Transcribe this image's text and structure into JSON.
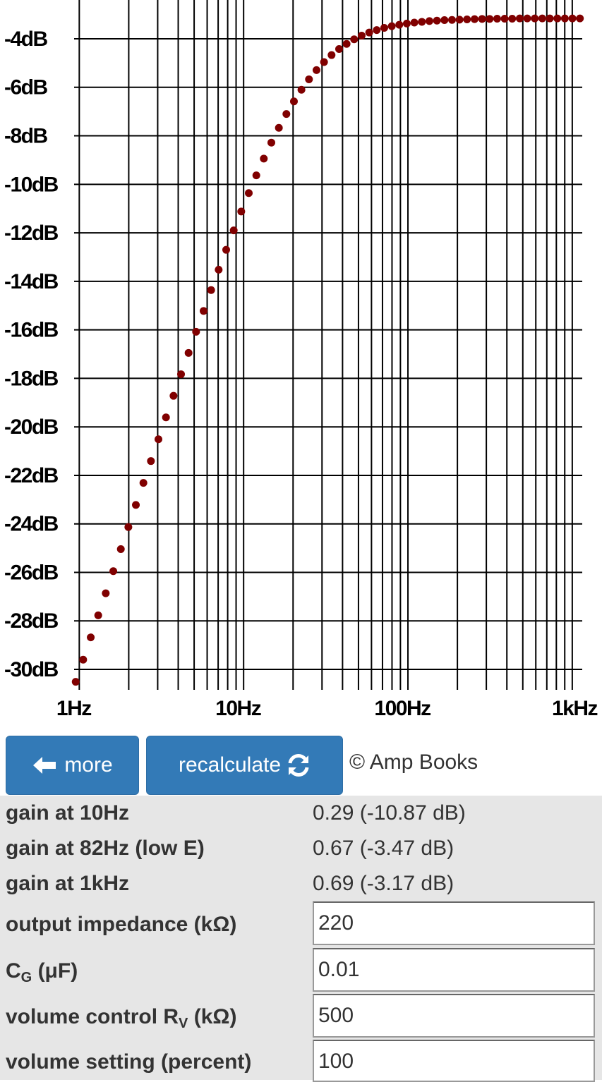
{
  "chart_data": {
    "type": "scatter",
    "log_x": true,
    "grid": true,
    "color": "#800000",
    "x": [
      0.951,
      1.056,
      1.174,
      1.304,
      1.449,
      1.611,
      1.79,
      1.989,
      2.21,
      2.456,
      2.729,
      3.032,
      3.37,
      3.745,
      4.161,
      4.624,
      5.138,
      5.709,
      6.344,
      7.05,
      7.834,
      8.705,
      9.674,
      10.75,
      11.95,
      13.27,
      14.75,
      16.39,
      18.21,
      20.24,
      22.49,
      24.99,
      27.77,
      30.86,
      34.29,
      38.11,
      42.35,
      47.06,
      52.29,
      58.1,
      64.57,
      71.75,
      79.73,
      88.6,
      98.45,
      109.4,
      121.6,
      135.1,
      150.1,
      166.8,
      185.4,
      206,
      228.9,
      254.4,
      282.7,
      314.1,
      349,
      387.8,
      431,
      478.9,
      532.1,
      591.3,
      657,
      730.1,
      811.2,
      901.5,
      1002,
      1113
    ],
    "values": [
      -30.51,
      -29.6,
      -28.68,
      -27.77,
      -26.86,
      -25.95,
      -25.04,
      -24.13,
      -23.22,
      -22.31,
      -21.41,
      -20.51,
      -19.61,
      -18.72,
      -17.83,
      -16.95,
      -16.08,
      -15.22,
      -14.36,
      -13.52,
      -12.7,
      -11.9,
      -11.12,
      -10.36,
      -9.63,
      -8.94,
      -8.28,
      -7.67,
      -7.1,
      -6.58,
      -6.1,
      -5.67,
      -5.29,
      -4.96,
      -4.67,
      -4.42,
      -4.21,
      -4.02,
      -3.87,
      -3.74,
      -3.64,
      -3.55,
      -3.48,
      -3.42,
      -3.37,
      -3.33,
      -3.3,
      -3.27,
      -3.25,
      -3.23,
      -3.22,
      -3.21,
      -3.2,
      -3.19,
      -3.18,
      -3.18,
      -3.17,
      -3.17,
      -3.17,
      -3.16,
      -3.16,
      -3.16,
      -3.16,
      -3.16,
      -3.16,
      -3.16,
      -3.16,
      -3.16
    ],
    "xlim": [
      0.93,
      1150
    ],
    "ylim": [
      -30.9,
      -2.4
    ],
    "xticks": [
      {
        "value": 1,
        "label": "1Hz"
      },
      {
        "value": 10,
        "label": "10Hz"
      },
      {
        "value": 100,
        "label": "100Hz"
      },
      {
        "value": 1000,
        "label": "1kHz"
      }
    ],
    "x_minor_ticks": [
      2,
      3,
      4,
      5,
      6,
      7,
      8,
      9,
      20,
      30,
      40,
      50,
      60,
      70,
      80,
      90,
      200,
      300,
      400,
      500,
      600,
      700,
      800,
      900
    ],
    "yticks": [
      {
        "value": -4,
        "label": "-4dB"
      },
      {
        "value": -6,
        "label": "-6dB"
      },
      {
        "value": -8,
        "label": "-8dB"
      },
      {
        "value": -10,
        "label": "-10dB"
      },
      {
        "value": -12,
        "label": "-12dB"
      },
      {
        "value": -14,
        "label": "-14dB"
      },
      {
        "value": -16,
        "label": "-16dB"
      },
      {
        "value": -18,
        "label": "-18dB"
      },
      {
        "value": -20,
        "label": "-20dB"
      },
      {
        "value": -22,
        "label": "-22dB"
      },
      {
        "value": -24,
        "label": "-24dB"
      },
      {
        "value": -26,
        "label": "-26dB"
      },
      {
        "value": -28,
        "label": "-28dB"
      },
      {
        "value": -30,
        "label": "-30dB"
      }
    ]
  },
  "buttons": [
    "more",
    "recalculate"
  ],
  "credit": "© Amp Books",
  "results": [
    {
      "label": "gain at 10Hz",
      "value": "0.29 (-10.87 dB)"
    },
    {
      "label": "gain at 82Hz (low E)",
      "value": "0.67 (-3.47 dB)"
    },
    {
      "label": "gain at 1kHz",
      "value": "0.69 (-3.17 dB)"
    }
  ],
  "inputs": [
    {
      "label": "output impedance (kΩ)",
      "value": "220"
    },
    {
      "label": "C",
      "sub": "G",
      "unit": " (μF)",
      "value": "0.01"
    },
    {
      "label": "volume control R",
      "sub": "V",
      "unit": " (kΩ)",
      "value": "500"
    },
    {
      "label": "volume setting (percent)",
      "value": "100"
    }
  ]
}
